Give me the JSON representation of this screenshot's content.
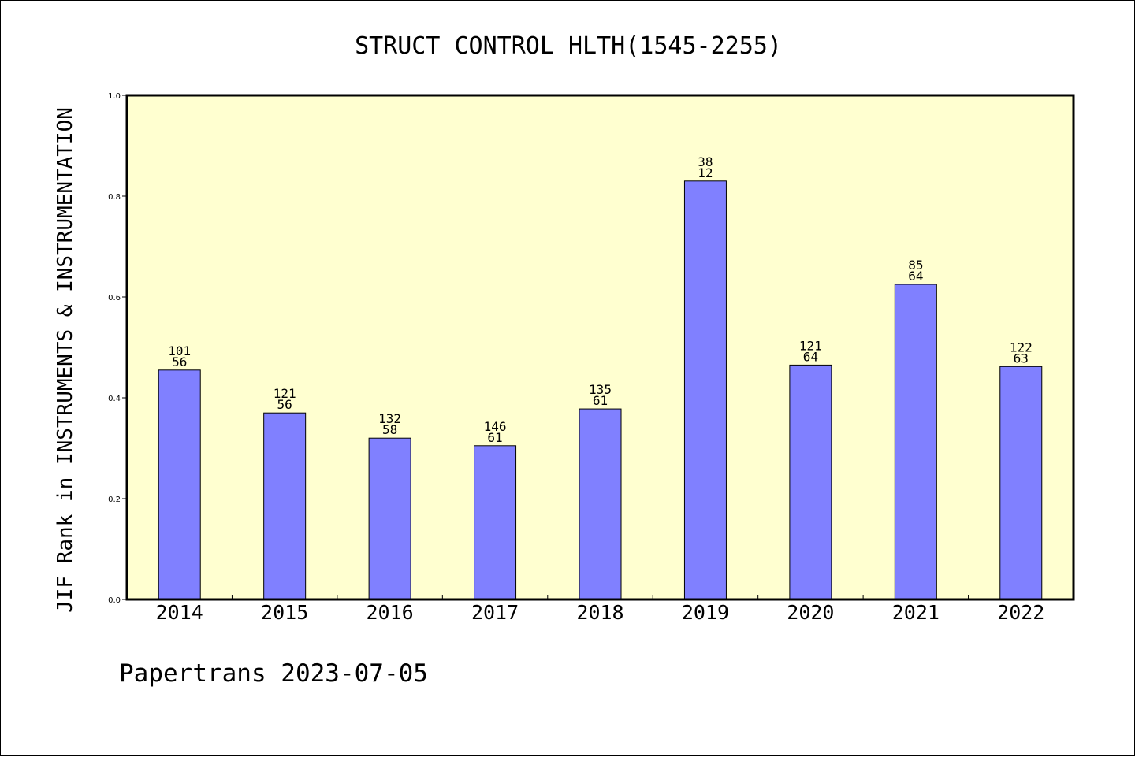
{
  "chart_data": {
    "type": "bar",
    "title": "STRUCT CONTROL HLTH(1545-2255)",
    "xlabel": "",
    "ylabel": "JIF Rank in INSTRUMENTS & INSTRUMENTATION",
    "ylim": [
      0,
      1.0
    ],
    "yticks": [
      "0.0",
      "0.2",
      "0.4",
      "0.6",
      "0.8",
      "1.0"
    ],
    "categories": [
      "2014",
      "2015",
      "2016",
      "2017",
      "2018",
      "2019",
      "2020",
      "2021",
      "2022"
    ],
    "values": [
      0.455,
      0.37,
      0.32,
      0.305,
      0.378,
      0.83,
      0.465,
      0.625,
      0.462
    ],
    "labels_top": [
      "101",
      "121",
      "132",
      "146",
      "135",
      "38",
      "121",
      "85",
      "122"
    ],
    "labels_bottom": [
      "56",
      "56",
      "58",
      "61",
      "61",
      "12",
      "64",
      "64",
      "63"
    ],
    "bar_color": "#8080ff",
    "plot_background": "#ffffd0",
    "grid": false,
    "legend": "none"
  },
  "footer": "Papertrans 2023-07-05"
}
